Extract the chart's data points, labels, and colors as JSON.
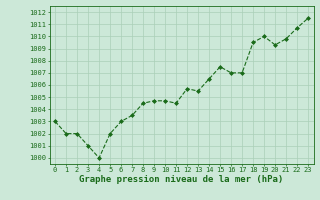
{
  "x": [
    0,
    1,
    2,
    3,
    4,
    5,
    6,
    7,
    8,
    9,
    10,
    11,
    12,
    13,
    14,
    15,
    16,
    17,
    18,
    19,
    20,
    21,
    22,
    23
  ],
  "y": [
    1003.0,
    1002.0,
    1002.0,
    1001.0,
    1000.0,
    1002.0,
    1003.0,
    1003.5,
    1004.5,
    1004.7,
    1004.7,
    1004.5,
    1005.7,
    1005.5,
    1006.5,
    1007.5,
    1007.0,
    1007.0,
    1009.5,
    1010.0,
    1009.3,
    1009.8,
    1010.7,
    1011.5
  ],
  "line_color": "#1a6b1a",
  "marker_color": "#1a6b1a",
  "bg_color": "#cce8d8",
  "grid_color": "#aacfb8",
  "title": "Graphe pression niveau de la mer (hPa)",
  "ylabel_vals": [
    1000,
    1001,
    1002,
    1003,
    1004,
    1005,
    1006,
    1007,
    1008,
    1009,
    1010,
    1011,
    1012
  ],
  "ylim": [
    999.5,
    1012.5
  ],
  "xlim": [
    -0.5,
    23.5
  ],
  "title_color": "#1a6b1a",
  "tick_fontsize": 5.0,
  "title_fontsize": 6.5
}
